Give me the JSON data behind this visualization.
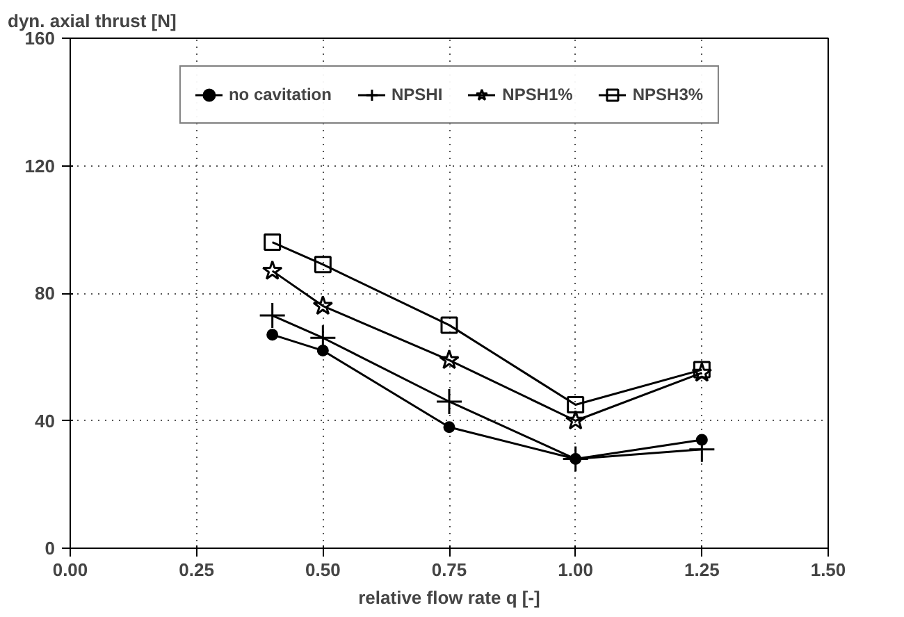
{
  "chart_data": {
    "type": "line",
    "ylabel": "dyn. axial thrust [N]",
    "xlabel": "relative flow rate q [-]",
    "x": [
      0.4,
      0.5,
      0.75,
      1.0,
      1.25
    ],
    "series": [
      {
        "name": "no cavitation",
        "color": "#000000",
        "marker": "circle",
        "values": [
          67,
          62,
          38,
          28,
          34
        ]
      },
      {
        "name": "NPSHI",
        "color": "#000000",
        "marker": "cross",
        "values": [
          73,
          66,
          46,
          28,
          31
        ]
      },
      {
        "name": "NPSH1%",
        "color": "#000000",
        "marker": "star",
        "values": [
          87,
          76,
          59,
          40,
          55
        ]
      },
      {
        "name": "NPSH3%",
        "color": "#000000",
        "marker": "square",
        "values": [
          96,
          89,
          70,
          45,
          56
        ]
      }
    ],
    "xlim": [
      0,
      1.5
    ],
    "xticks": [
      {
        "value": 0,
        "label": "0.00"
      },
      {
        "value": 0.25,
        "label": "0.25"
      },
      {
        "value": 0.5,
        "label": "0.50"
      },
      {
        "value": 0.75,
        "label": "0.75"
      },
      {
        "value": 1.0,
        "label": "1.00"
      },
      {
        "value": 1.25,
        "label": "1.25"
      },
      {
        "value": 1.5,
        "label": "1.50"
      }
    ],
    "ylim": [
      0,
      160
    ],
    "yticks": [
      0,
      40,
      80,
      120,
      160
    ],
    "grid": true,
    "legend": "top"
  }
}
